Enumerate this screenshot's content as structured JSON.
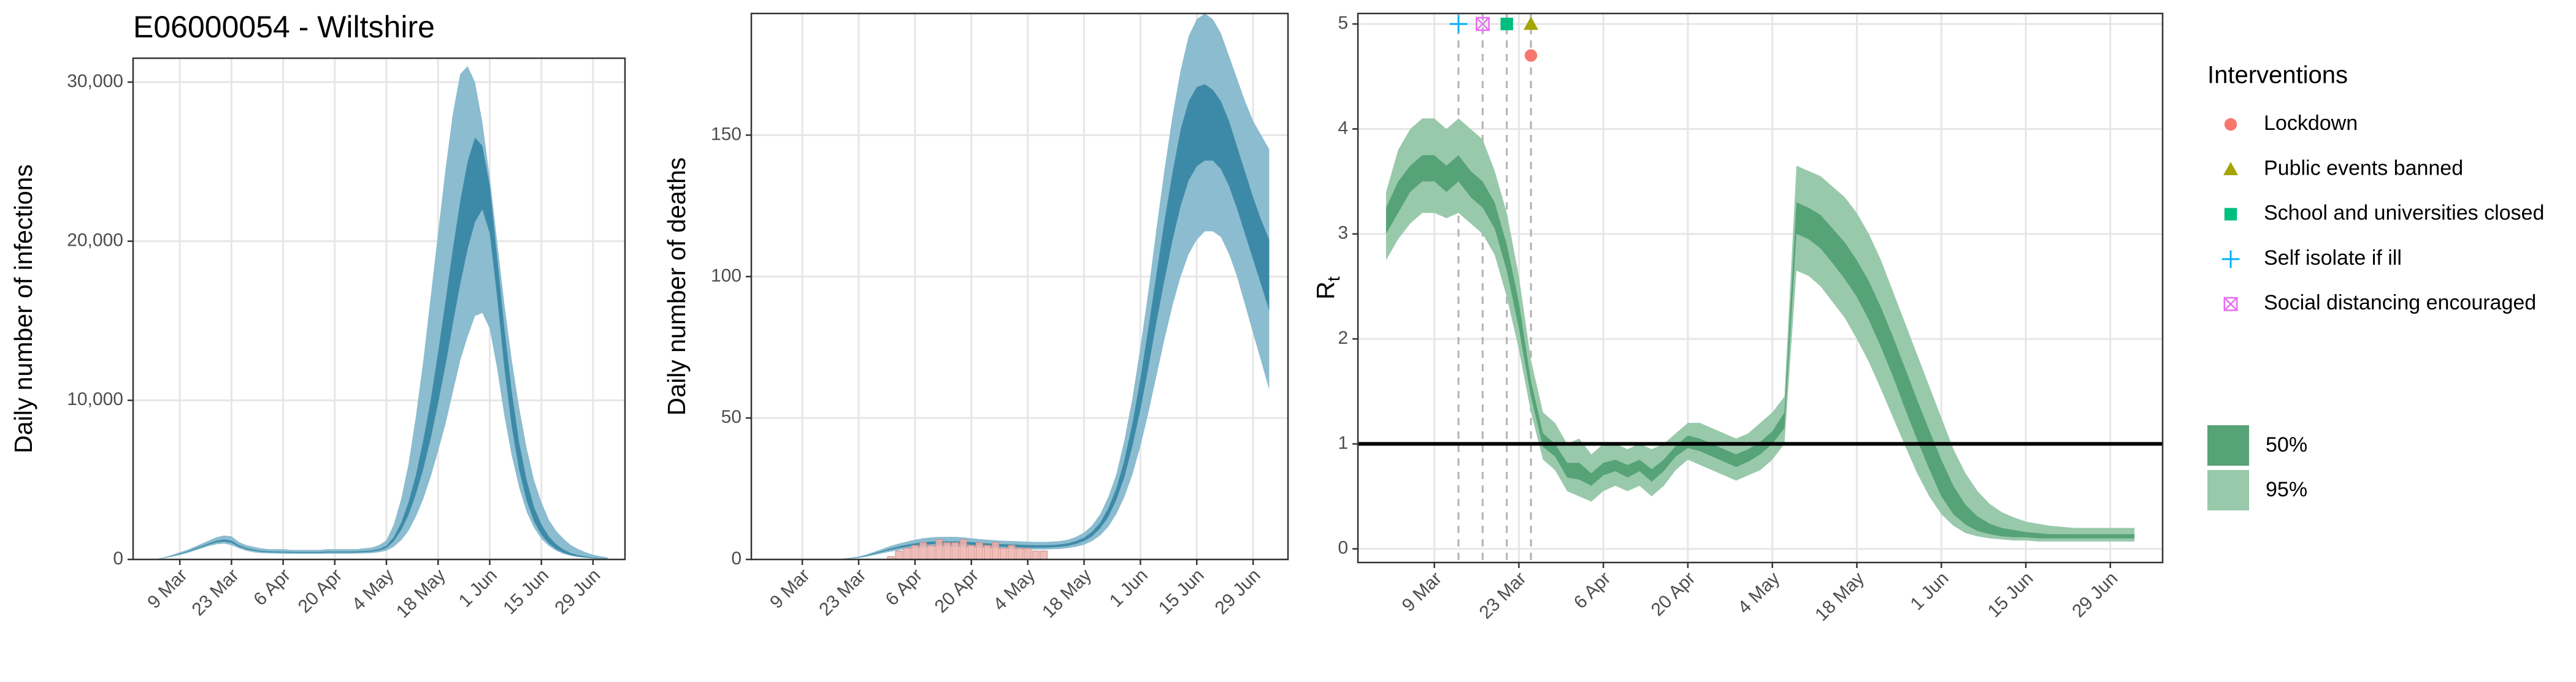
{
  "chart_data": [
    {
      "type": "band",
      "title": "E06000054 - Wiltshire",
      "ylabel": "Daily number of infections",
      "categories": [
        null,
        null,
        null,
        null,
        "9 Mar",
        null,
        null,
        null,
        null,
        null,
        null,
        "23 Mar",
        null,
        null,
        null,
        null,
        null,
        null,
        "6 Apr",
        null,
        null,
        null,
        null,
        null,
        null,
        "20 Apr",
        null,
        null,
        null,
        null,
        null,
        null,
        "4 May",
        null,
        null,
        null,
        null,
        null,
        null,
        "18 May",
        null,
        null,
        null,
        null,
        null,
        null,
        "1 Jun",
        null,
        null,
        null,
        null,
        null,
        null,
        "15 Jun",
        null,
        null,
        null,
        null,
        null,
        null,
        "29 Jun",
        null,
        null
      ],
      "ylim": [
        0,
        31500
      ],
      "yticks": [
        0,
        {
          "value": 10000,
          "label": "10,000"
        },
        {
          "value": 20000,
          "label": "20,000"
        },
        {
          "value": 30000,
          "label": "30,000"
        }
      ],
      "grid": true,
      "series": [
        {
          "color": "#8bbccf",
          "lower": [
            0,
            30,
            80,
            180,
            280,
            400,
            550,
            700,
            850,
            950,
            1000,
            900,
            700,
            550,
            450,
            400,
            380,
            370,
            360,
            350,
            350,
            350,
            350,
            350,
            360,
            360,
            360,
            360,
            370,
            380,
            400,
            450,
            550,
            800,
            1200,
            1800,
            2700,
            3800,
            5200,
            6800,
            8500,
            10500,
            12500,
            14000,
            15300,
            15500,
            14500,
            12000,
            9000,
            6500,
            4500,
            3000,
            2000,
            1300,
            850,
            550,
            350,
            230,
            150,
            100,
            70,
            50,
            30
          ],
          "upper": [
            0,
            50,
            150,
            300,
            450,
            600,
            800,
            1000,
            1200,
            1400,
            1500,
            1450,
            1100,
            900,
            800,
            700,
            650,
            650,
            650,
            600,
            600,
            600,
            600,
            600,
            650,
            650,
            650,
            650,
            650,
            700,
            750,
            900,
            1200,
            2200,
            3800,
            6000,
            9000,
            12500,
            16500,
            20500,
            24500,
            28000,
            30500,
            31000,
            30000,
            27500,
            24000,
            20000,
            16000,
            12500,
            9500,
            7000,
            5000,
            3600,
            2500,
            1800,
            1300,
            900,
            650,
            450,
            300,
            200,
            130
          ]
        },
        {
          "color": "#3d8aa8",
          "lower": [
            0,
            35,
            100,
            220,
            340,
            460,
            620,
            780,
            940,
            1080,
            1130,
            1050,
            800,
            640,
            550,
            480,
            450,
            440,
            430,
            420,
            410,
            410,
            410,
            410,
            430,
            430,
            430,
            430,
            440,
            460,
            490,
            560,
            720,
            1150,
            1850,
            2800,
            4100,
            5700,
            7600,
            9800,
            12200,
            14800,
            17300,
            19500,
            21200,
            22000,
            20500,
            16500,
            12000,
            8300,
            5600,
            3700,
            2400,
            1550,
            1000,
            650,
            420,
            270,
            180,
            120,
            80,
            55,
            38
          ],
          "upper": [
            0,
            40,
            110,
            240,
            370,
            500,
            680,
            850,
            1020,
            1180,
            1250,
            1180,
            900,
            720,
            620,
            550,
            510,
            500,
            490,
            480,
            470,
            470,
            470,
            470,
            500,
            500,
            500,
            500,
            510,
            530,
            570,
            650,
            850,
            1400,
            2300,
            3600,
            5300,
            7500,
            10000,
            13000,
            16200,
            19500,
            22500,
            25000,
            26500,
            26000,
            23500,
            19000,
            14500,
            10500,
            7300,
            5000,
            3300,
            2200,
            1450,
            950,
            620,
            400,
            270,
            180,
            120,
            80,
            55
          ]
        }
      ]
    },
    {
      "type": "band",
      "ylabel": "Daily number of deaths",
      "categories": [
        null,
        null,
        null,
        null,
        "9 Mar",
        null,
        null,
        null,
        null,
        null,
        null,
        "23 Mar",
        null,
        null,
        null,
        null,
        null,
        null,
        "6 Apr",
        null,
        null,
        null,
        null,
        null,
        null,
        "20 Apr",
        null,
        null,
        null,
        null,
        null,
        null,
        "4 May",
        null,
        null,
        null,
        null,
        null,
        null,
        "18 May",
        null,
        null,
        null,
        null,
        null,
        null,
        "1 Jun",
        null,
        null,
        null,
        null,
        null,
        null,
        "15 Jun",
        null,
        null,
        null,
        null,
        null,
        null,
        "29 Jun",
        null,
        null
      ],
      "ylim": [
        0,
        193
      ],
      "yticks": [
        0,
        50,
        100,
        150
      ],
      "grid": true,
      "bars": {
        "color": "#eeb2ad",
        "values": [
          null,
          null,
          null,
          null,
          null,
          null,
          null,
          null,
          null,
          null,
          null,
          null,
          null,
          null,
          null,
          1,
          3,
          4,
          5,
          6,
          5,
          7,
          6,
          6,
          7,
          5,
          6,
          5,
          6,
          4,
          5,
          4,
          4,
          3,
          3,
          null,
          null,
          null,
          null,
          null,
          null,
          null,
          null,
          null,
          null,
          null,
          null,
          null,
          null,
          null,
          null,
          null,
          null,
          null,
          null,
          null,
          null,
          null,
          null,
          null,
          null,
          null,
          null
        ]
      },
      "series": [
        {
          "color": "#8bbccf",
          "lower": [
            0,
            0,
            0,
            0,
            0,
            0,
            0,
            0,
            0,
            0.1,
            0.3,
            0.5,
            1,
            1.6,
            2.2,
            2.8,
            3.3,
            3.7,
            4,
            4.3,
            4.5,
            4.6,
            4.6,
            4.6,
            4.5,
            4.4,
            4.2,
            4,
            3.9,
            3.8,
            3.7,
            3.6,
            3.5,
            3.5,
            3.5,
            3.6,
            3.7,
            4,
            4.5,
            5.2,
            6.5,
            8.5,
            11.5,
            16,
            22,
            30,
            40,
            52,
            65,
            78,
            90,
            100,
            108,
            113,
            116,
            116,
            114,
            108,
            100,
            90,
            80,
            70,
            60
          ],
          "upper": [
            0,
            0,
            0,
            0,
            0,
            0,
            0,
            0,
            0,
            0.3,
            0.6,
            1,
            1.8,
            2.8,
            3.8,
            4.8,
            5.6,
            6.3,
            7,
            7.5,
            7.8,
            8,
            8,
            8,
            7.8,
            7.5,
            7.2,
            7,
            6.8,
            6.6,
            6.5,
            6.4,
            6.3,
            6.2,
            6.2,
            6.3,
            6.5,
            7,
            8,
            9.5,
            12,
            16,
            22,
            30,
            42,
            57,
            75,
            95,
            117,
            138,
            157,
            173,
            185,
            191,
            193,
            191,
            186,
            178,
            170,
            162,
            155,
            150,
            145
          ]
        },
        {
          "color": "#3d8aa8",
          "lower": [
            0,
            0,
            0,
            0,
            0,
            0,
            0,
            0,
            0,
            0.15,
            0.4,
            0.7,
            1.3,
            2,
            2.7,
            3.4,
            4,
            4.5,
            4.9,
            5.2,
            5.4,
            5.5,
            5.5,
            5.5,
            5.4,
            5.2,
            5,
            4.8,
            4.6,
            4.5,
            4.4,
            4.3,
            4.2,
            4.2,
            4.2,
            4.3,
            4.5,
            4.8,
            5.5,
            6.5,
            8.2,
            11,
            15,
            21,
            29,
            40,
            53,
            68,
            84,
            99,
            113,
            125,
            134,
            139,
            141,
            141,
            138,
            132,
            124,
            115,
            106,
            97,
            88
          ],
          "upper": [
            0,
            0,
            0,
            0,
            0,
            0,
            0,
            0,
            0,
            0.2,
            0.5,
            0.8,
            1.5,
            2.3,
            3.1,
            3.9,
            4.6,
            5.2,
            5.7,
            6.1,
            6.3,
            6.4,
            6.4,
            6.4,
            6.3,
            6.1,
            5.9,
            5.7,
            5.5,
            5.4,
            5.3,
            5.2,
            5.1,
            5,
            5,
            5.1,
            5.3,
            5.7,
            6.5,
            7.7,
            9.8,
            13,
            18,
            25,
            35,
            48,
            64,
            82,
            101,
            120,
            137,
            152,
            162,
            167,
            168,
            166,
            162,
            155,
            146,
            137,
            128,
            120,
            113
          ]
        }
      ]
    },
    {
      "type": "band",
      "ylabel": "R",
      "ylabel_sub": "t",
      "categories": [
        null,
        null,
        null,
        null,
        "9 Mar",
        null,
        null,
        null,
        null,
        null,
        null,
        "23 Mar",
        null,
        null,
        null,
        null,
        null,
        null,
        "6 Apr",
        null,
        null,
        null,
        null,
        null,
        null,
        "20 Apr",
        null,
        null,
        null,
        null,
        null,
        null,
        "4 May",
        null,
        null,
        null,
        null,
        null,
        null,
        "18 May",
        null,
        null,
        null,
        null,
        null,
        null,
        "1 Jun",
        null,
        null,
        null,
        null,
        null,
        null,
        "15 Jun",
        null,
        null,
        null,
        null,
        null,
        null,
        "29 Jun",
        null,
        null
      ],
      "ylim": [
        -0.13,
        5.1
      ],
      "yticks": [
        0,
        1,
        2,
        3,
        4,
        5
      ],
      "grid": true,
      "hline": 1,
      "legend": "right",
      "series": [
        {
          "name": "95%",
          "color": "#99c9ab",
          "lower": [
            2.75,
            2.95,
            3.1,
            3.2,
            3.2,
            3.15,
            3.2,
            3.1,
            3.0,
            2.8,
            2.4,
            1.9,
            1.3,
            0.85,
            0.75,
            0.55,
            0.5,
            0.45,
            0.55,
            0.6,
            0.55,
            0.6,
            0.5,
            0.6,
            0.75,
            0.85,
            0.8,
            0.75,
            0.7,
            0.65,
            0.7,
            0.75,
            0.85,
            1.0,
            2.65,
            2.6,
            2.5,
            2.35,
            2.2,
            2.0,
            1.78,
            1.52,
            1.25,
            0.98,
            0.72,
            0.5,
            0.33,
            0.22,
            0.15,
            0.12,
            0.1,
            0.09,
            0.08,
            0.08,
            0.07,
            0.07,
            0.07,
            0.07,
            0.07,
            0.07,
            0.07,
            0.07,
            0.07
          ],
          "upper": [
            3.4,
            3.8,
            4.0,
            4.1,
            4.1,
            4.0,
            4.1,
            4.0,
            3.9,
            3.6,
            3.2,
            2.6,
            1.8,
            1.3,
            1.2,
            1.0,
            1.05,
            0.9,
            1.0,
            1.0,
            0.95,
            1.0,
            0.95,
            1.0,
            1.1,
            1.2,
            1.2,
            1.15,
            1.1,
            1.05,
            1.1,
            1.2,
            1.3,
            1.45,
            3.65,
            3.6,
            3.55,
            3.45,
            3.35,
            3.2,
            3.0,
            2.75,
            2.45,
            2.15,
            1.85,
            1.55,
            1.25,
            0.95,
            0.72,
            0.55,
            0.43,
            0.35,
            0.3,
            0.26,
            0.24,
            0.22,
            0.21,
            0.2,
            0.2,
            0.2,
            0.2,
            0.2,
            0.2
          ]
        },
        {
          "name": "50%",
          "color": "#57a378",
          "lower": [
            3.0,
            3.2,
            3.4,
            3.5,
            3.5,
            3.4,
            3.5,
            3.35,
            3.25,
            3.05,
            2.65,
            2.1,
            1.45,
            0.97,
            0.88,
            0.68,
            0.66,
            0.6,
            0.7,
            0.74,
            0.68,
            0.74,
            0.64,
            0.74,
            0.88,
            0.96,
            0.93,
            0.88,
            0.83,
            0.78,
            0.83,
            0.9,
            1.0,
            1.15,
            3.0,
            2.95,
            2.86,
            2.72,
            2.57,
            2.4,
            2.18,
            1.92,
            1.64,
            1.33,
            1.04,
            0.76,
            0.5,
            0.33,
            0.23,
            0.17,
            0.14,
            0.12,
            0.11,
            0.11,
            0.1,
            0.1,
            0.1,
            0.1,
            0.1,
            0.1,
            0.1,
            0.1,
            0.1
          ],
          "upper": [
            3.25,
            3.5,
            3.65,
            3.75,
            3.75,
            3.65,
            3.75,
            3.6,
            3.5,
            3.3,
            2.9,
            2.35,
            1.6,
            1.1,
            1.0,
            0.82,
            0.82,
            0.72,
            0.82,
            0.85,
            0.8,
            0.85,
            0.76,
            0.85,
            0.98,
            1.08,
            1.05,
            1.0,
            0.95,
            0.9,
            0.95,
            1.02,
            1.12,
            1.3,
            3.3,
            3.25,
            3.18,
            3.05,
            2.92,
            2.75,
            2.55,
            2.3,
            2.02,
            1.72,
            1.42,
            1.13,
            0.85,
            0.6,
            0.42,
            0.31,
            0.24,
            0.2,
            0.18,
            0.16,
            0.15,
            0.14,
            0.14,
            0.14,
            0.14,
            0.14,
            0.14,
            0.14,
            0.14
          ]
        }
      ],
      "interventions": {
        "title": "Interventions",
        "items": [
          {
            "name": "Lockdown",
            "color": "#F8766D",
            "shape": "circle",
            "x": 12,
            "y": 4.7
          },
          {
            "name": "Public events banned",
            "color": "#A3A500",
            "shape": "triangle",
            "x": 12,
            "y": 5
          },
          {
            "name": "School and universities closed",
            "color": "#00BF7D",
            "shape": "square",
            "x": 10,
            "y": 5
          },
          {
            "name": "Self isolate if ill",
            "color": "#00B0F6",
            "shape": "plus",
            "x": 6,
            "y": 5
          },
          {
            "name": "Social distancing encouraged",
            "color": "#E76BF3",
            "shape": "boxx",
            "x": 8,
            "y": 5
          }
        ]
      }
    }
  ]
}
